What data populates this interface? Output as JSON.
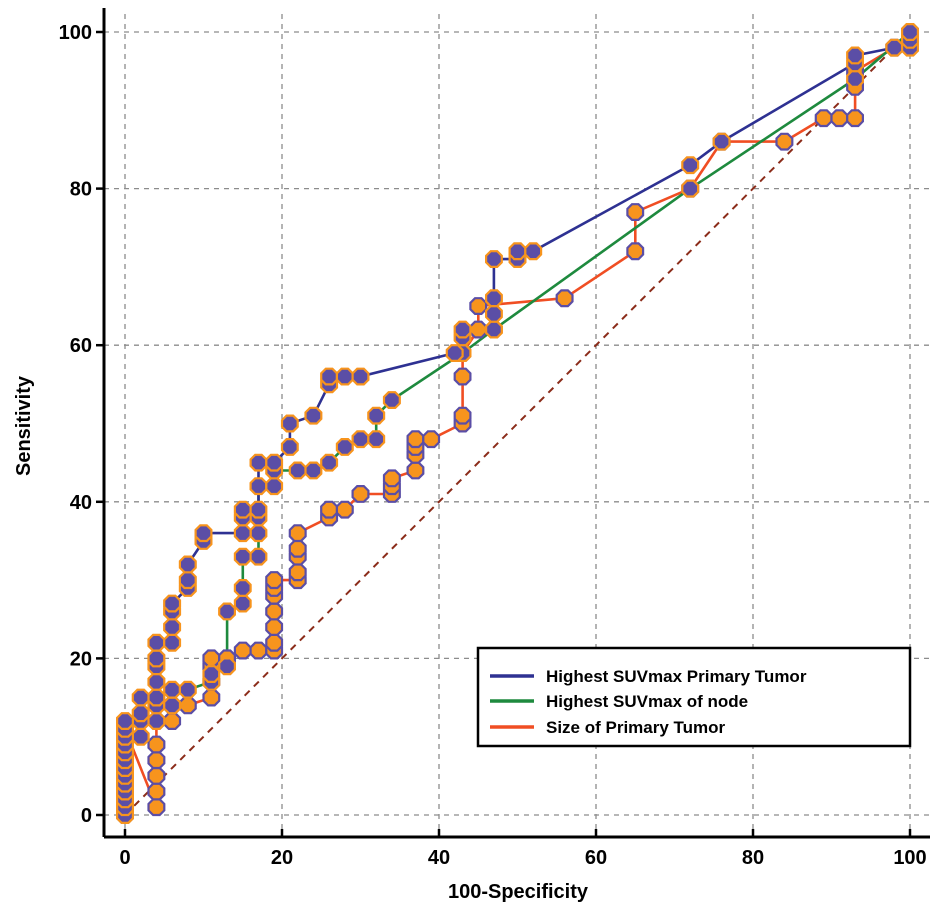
{
  "chart_data": {
    "type": "line",
    "xlabel": "100-Specificity",
    "ylabel": "Sensitivity",
    "xlim": [
      0,
      100
    ],
    "ylim": [
      0,
      100
    ],
    "x_ticks": [
      "0",
      "20",
      "40",
      "60",
      "80",
      "100"
    ],
    "y_ticks": [
      "0",
      "20",
      "40",
      "60",
      "80",
      "100"
    ],
    "grid": true,
    "legend_position": "bottom-right",
    "reference_line": {
      "from": [
        0,
        0
      ],
      "to": [
        100,
        100
      ],
      "color": "#8b2c1a",
      "style": "dashed"
    },
    "series": [
      {
        "name": "Highest SUVmax Primary Tumor",
        "color": "#2e3192",
        "points": [
          [
            0,
            0
          ],
          [
            0,
            1
          ],
          [
            0,
            2
          ],
          [
            0,
            3
          ],
          [
            0,
            4
          ],
          [
            0,
            5
          ],
          [
            0,
            6
          ],
          [
            0,
            7
          ],
          [
            0,
            8
          ],
          [
            0,
            9
          ],
          [
            0,
            10
          ],
          [
            0,
            11
          ],
          [
            0,
            12
          ],
          [
            2,
            13
          ],
          [
            2,
            15
          ],
          [
            4,
            15
          ],
          [
            4,
            17
          ],
          [
            4,
            19
          ],
          [
            4,
            20
          ],
          [
            4,
            22
          ],
          [
            6,
            22
          ],
          [
            6,
            24
          ],
          [
            6,
            26
          ],
          [
            6,
            27
          ],
          [
            8,
            29
          ],
          [
            8,
            30
          ],
          [
            8,
            32
          ],
          [
            10,
            35
          ],
          [
            10,
            36
          ],
          [
            15,
            36
          ],
          [
            15,
            38
          ],
          [
            15,
            39
          ],
          [
            17,
            39
          ],
          [
            17,
            45
          ],
          [
            19,
            45
          ],
          [
            21,
            47
          ],
          [
            21,
            50
          ],
          [
            24,
            51
          ],
          [
            26,
            55
          ],
          [
            26,
            56
          ],
          [
            28,
            56
          ],
          [
            30,
            56
          ],
          [
            42,
            59
          ],
          [
            43,
            61
          ],
          [
            43,
            62
          ],
          [
            47,
            62
          ],
          [
            47,
            64
          ],
          [
            47,
            66
          ],
          [
            47,
            71
          ],
          [
            50,
            71
          ],
          [
            50,
            72
          ],
          [
            52,
            72
          ],
          [
            72,
            83
          ],
          [
            76,
            86
          ],
          [
            93,
            96
          ],
          [
            93,
            97
          ],
          [
            98,
            98
          ],
          [
            100,
            98
          ],
          [
            100,
            99
          ],
          [
            100,
            100
          ]
        ]
      },
      {
        "name": "Highest SUVmax of node",
        "color": "#1e8a3e",
        "points": [
          [
            0,
            0
          ],
          [
            0,
            2
          ],
          [
            0,
            5
          ],
          [
            0,
            8
          ],
          [
            0,
            10
          ],
          [
            2,
            10
          ],
          [
            2,
            12
          ],
          [
            4,
            12
          ],
          [
            4,
            14
          ],
          [
            6,
            14
          ],
          [
            6,
            16
          ],
          [
            8,
            16
          ],
          [
            11,
            17
          ],
          [
            11,
            18
          ],
          [
            13,
            19
          ],
          [
            13,
            26
          ],
          [
            15,
            27
          ],
          [
            15,
            29
          ],
          [
            15,
            33
          ],
          [
            17,
            33
          ],
          [
            17,
            36
          ],
          [
            17,
            38
          ],
          [
            17,
            42
          ],
          [
            19,
            42
          ],
          [
            19,
            44
          ],
          [
            22,
            44
          ],
          [
            24,
            44
          ],
          [
            26,
            45
          ],
          [
            28,
            47
          ],
          [
            30,
            48
          ],
          [
            32,
            48
          ],
          [
            32,
            51
          ],
          [
            34,
            53
          ],
          [
            43,
            59
          ],
          [
            47,
            62
          ],
          [
            72,
            80
          ],
          [
            93,
            94
          ],
          [
            100,
            100
          ]
        ]
      },
      {
        "name": "Size of Primary Tumor",
        "color": "#f04e23",
        "points": [
          [
            0,
            0
          ],
          [
            0,
            1
          ],
          [
            0,
            3
          ],
          [
            0,
            5
          ],
          [
            0,
            7
          ],
          [
            0,
            9
          ],
          [
            0,
            11
          ],
          [
            4,
            1
          ],
          [
            4,
            3
          ],
          [
            4,
            5
          ],
          [
            4,
            7
          ],
          [
            4,
            9
          ],
          [
            4,
            12
          ],
          [
            6,
            12
          ],
          [
            6,
            14
          ],
          [
            8,
            14
          ],
          [
            11,
            15
          ],
          [
            11,
            17
          ],
          [
            11,
            19
          ],
          [
            11,
            20
          ],
          [
            13,
            20
          ],
          [
            15,
            21
          ],
          [
            17,
            21
          ],
          [
            19,
            21
          ],
          [
            19,
            22
          ],
          [
            19,
            24
          ],
          [
            19,
            26
          ],
          [
            19,
            28
          ],
          [
            19,
            29
          ],
          [
            19,
            30
          ],
          [
            22,
            30
          ],
          [
            22,
            31
          ],
          [
            22,
            33
          ],
          [
            22,
            34
          ],
          [
            22,
            36
          ],
          [
            26,
            38
          ],
          [
            26,
            39
          ],
          [
            28,
            39
          ],
          [
            30,
            41
          ],
          [
            34,
            41
          ],
          [
            34,
            42
          ],
          [
            34,
            43
          ],
          [
            37,
            44
          ],
          [
            37,
            46
          ],
          [
            37,
            47
          ],
          [
            37,
            48
          ],
          [
            39,
            48
          ],
          [
            43,
            50
          ],
          [
            43,
            51
          ],
          [
            43,
            56
          ],
          [
            43,
            59
          ],
          [
            45,
            62
          ],
          [
            45,
            65
          ],
          [
            56,
            66
          ],
          [
            65,
            72
          ],
          [
            65,
            77
          ],
          [
            72,
            80
          ],
          [
            76,
            86
          ],
          [
            84,
            86
          ],
          [
            89,
            89
          ],
          [
            91,
            89
          ],
          [
            93,
            89
          ],
          [
            93,
            93
          ],
          [
            93,
            95
          ],
          [
            98,
            98
          ],
          [
            100,
            99
          ],
          [
            100,
            100
          ]
        ]
      }
    ]
  }
}
